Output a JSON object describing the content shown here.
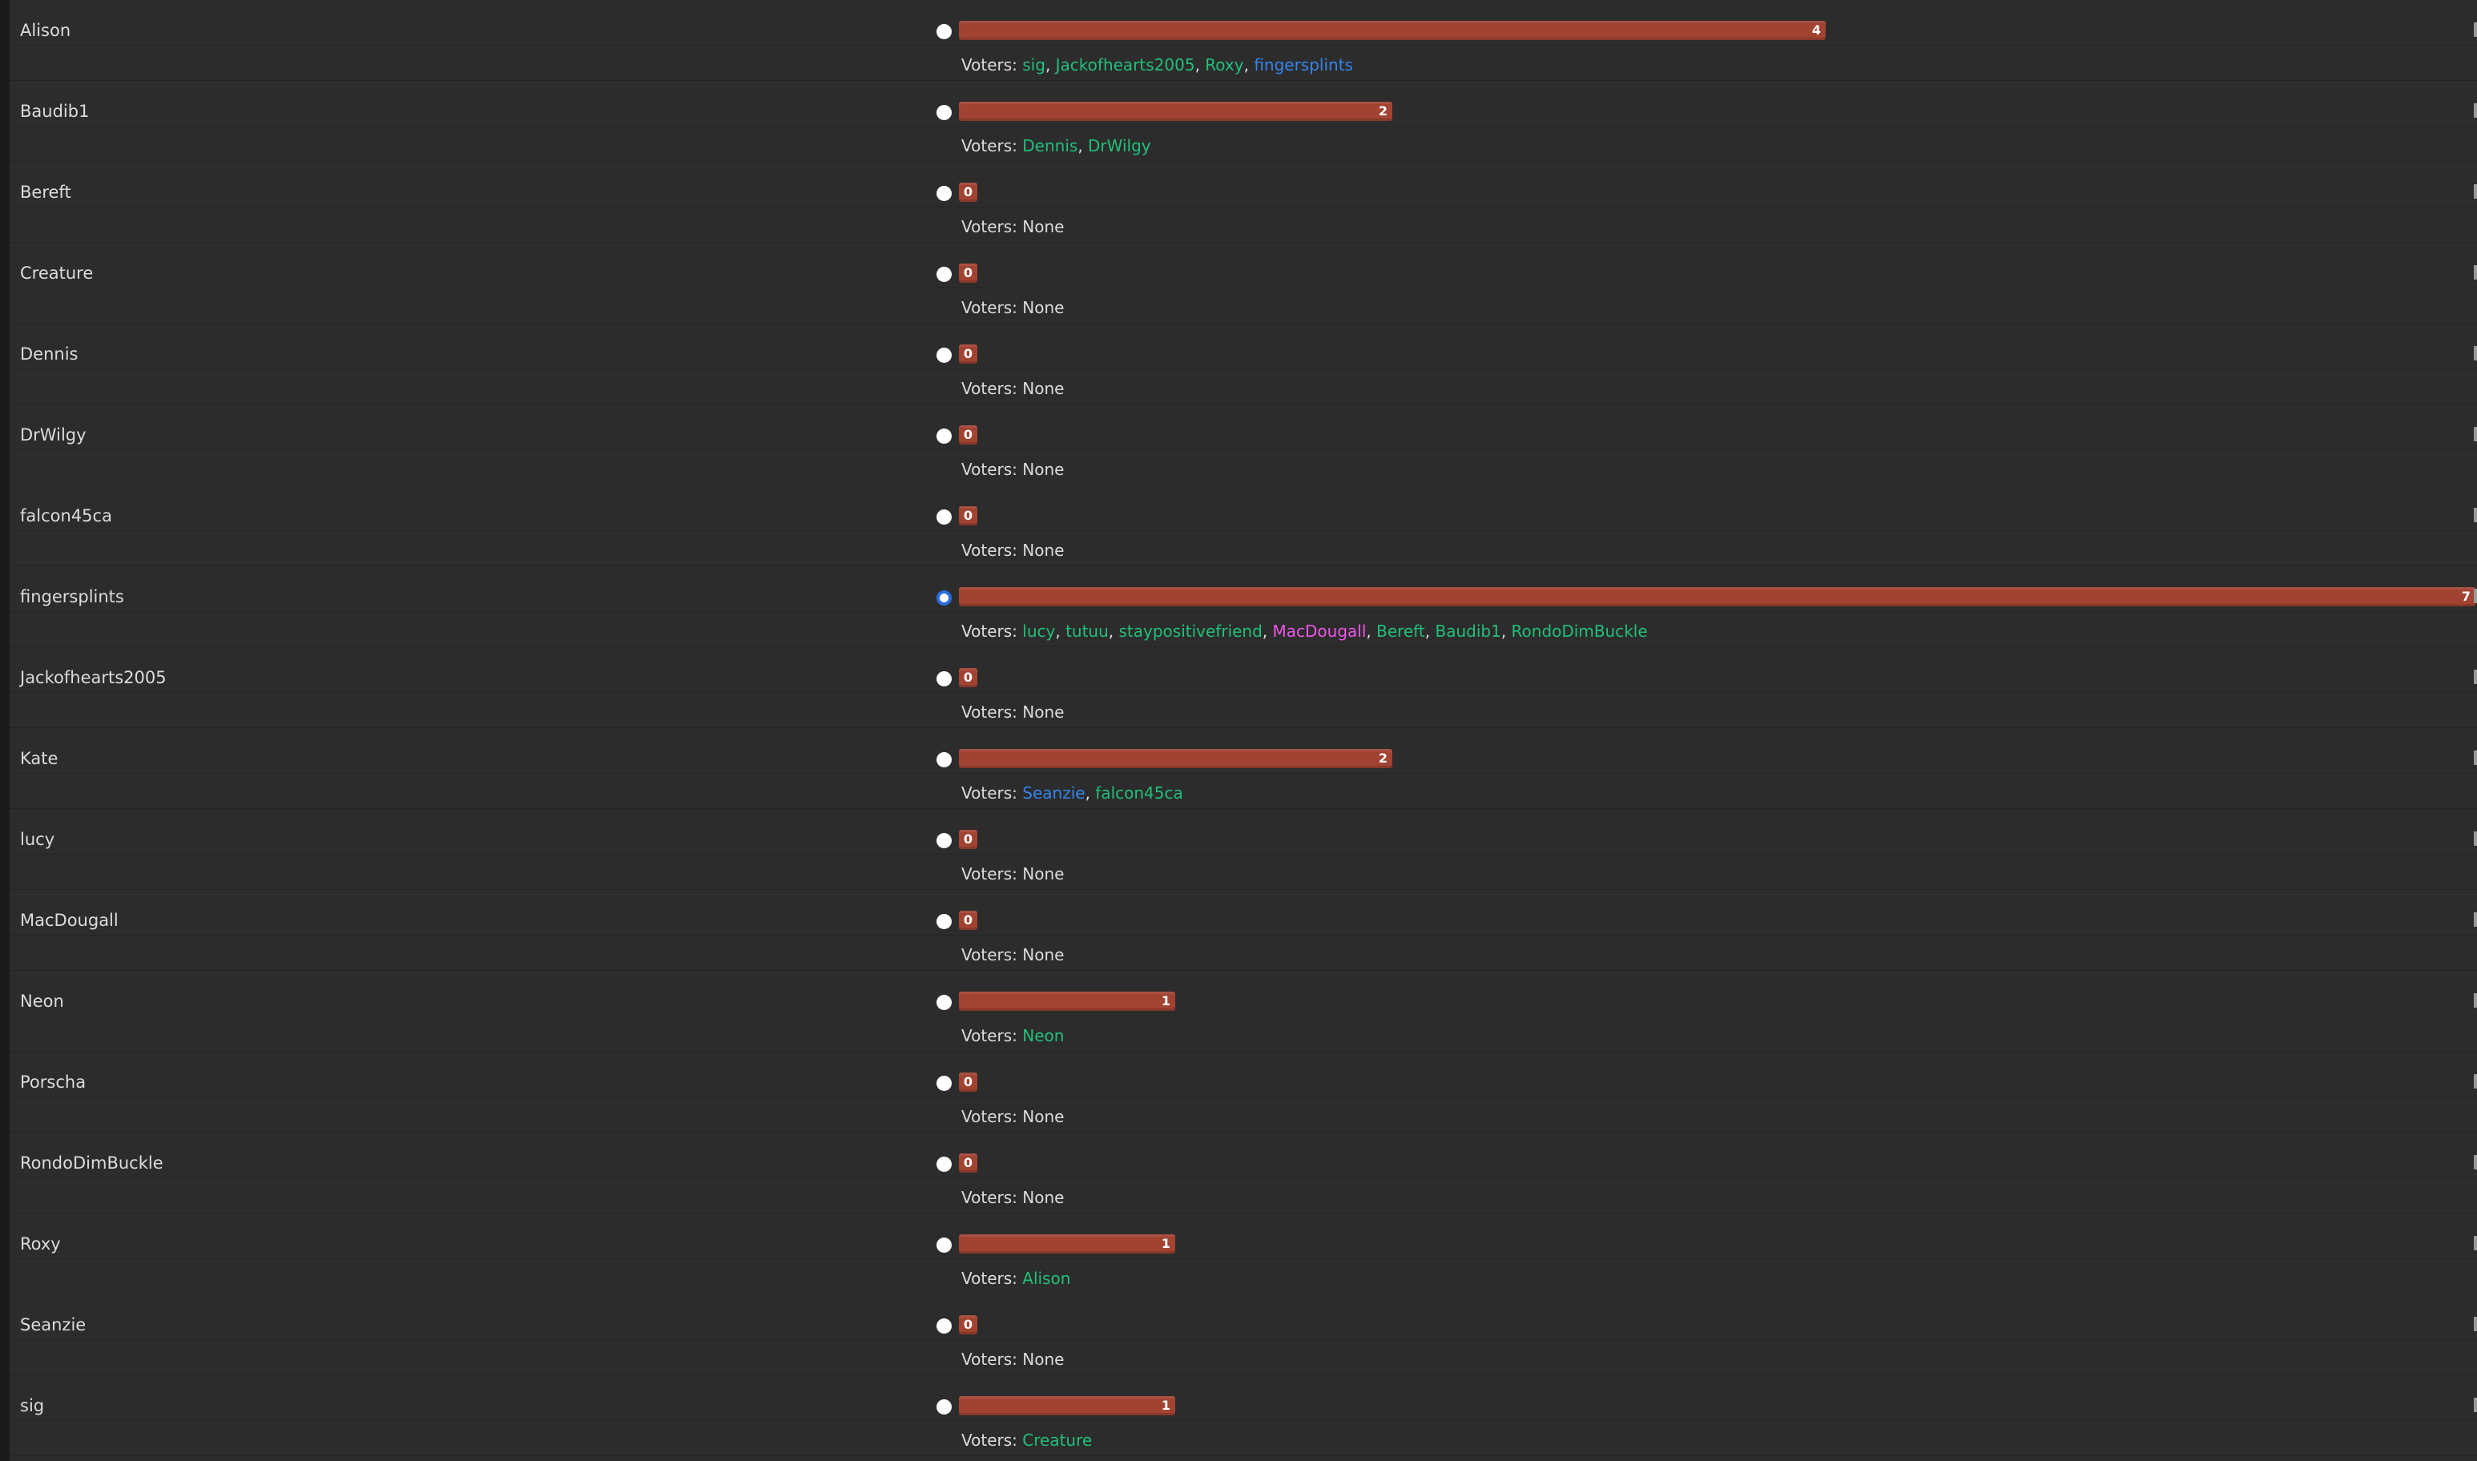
{
  "poll": {
    "voters_prefix": "Voters:",
    "none_text": "None",
    "max_votes": 7,
    "colors": {
      "bar": "#a24332",
      "voter_green": "#21c07a",
      "voter_blue": "#3585ee",
      "voter_pink": "#ee55e9",
      "selected_radio": "#2b6fe0"
    },
    "candidates": [
      {
        "name": "Alison",
        "votes": 4,
        "selected": false,
        "voters": [
          {
            "name": "sig",
            "color": "green"
          },
          {
            "name": "Jackofhearts2005",
            "color": "green"
          },
          {
            "name": "Roxy",
            "color": "green"
          },
          {
            "name": "fingersplints",
            "color": "blue"
          }
        ]
      },
      {
        "name": "Baudib1",
        "votes": 2,
        "selected": false,
        "voters": [
          {
            "name": "Dennis",
            "color": "green"
          },
          {
            "name": "DrWilgy",
            "color": "green"
          }
        ]
      },
      {
        "name": "Bereft",
        "votes": 0,
        "selected": false,
        "voters": []
      },
      {
        "name": "Creature",
        "votes": 0,
        "selected": false,
        "voters": []
      },
      {
        "name": "Dennis",
        "votes": 0,
        "selected": false,
        "voters": []
      },
      {
        "name": "DrWilgy",
        "votes": 0,
        "selected": false,
        "voters": []
      },
      {
        "name": "falcon45ca",
        "votes": 0,
        "selected": false,
        "voters": []
      },
      {
        "name": "fingersplints",
        "votes": 7,
        "selected": true,
        "voters": [
          {
            "name": "lucy",
            "color": "green"
          },
          {
            "name": "tutuu",
            "color": "green"
          },
          {
            "name": "staypositivefriend",
            "color": "green"
          },
          {
            "name": "MacDougall",
            "color": "pink"
          },
          {
            "name": "Bereft",
            "color": "green"
          },
          {
            "name": "Baudib1",
            "color": "green"
          },
          {
            "name": "RondoDimBuckle",
            "color": "green"
          }
        ]
      },
      {
        "name": "Jackofhearts2005",
        "votes": 0,
        "selected": false,
        "voters": []
      },
      {
        "name": "Kate",
        "votes": 2,
        "selected": false,
        "voters": [
          {
            "name": "Seanzie",
            "color": "blue"
          },
          {
            "name": "falcon45ca",
            "color": "green"
          }
        ]
      },
      {
        "name": "lucy",
        "votes": 0,
        "selected": false,
        "voters": []
      },
      {
        "name": "MacDougall",
        "votes": 0,
        "selected": false,
        "voters": []
      },
      {
        "name": "Neon",
        "votes": 1,
        "selected": false,
        "voters": [
          {
            "name": "Neon",
            "color": "green"
          }
        ]
      },
      {
        "name": "Porscha",
        "votes": 0,
        "selected": false,
        "voters": []
      },
      {
        "name": "RondoDimBuckle",
        "votes": 0,
        "selected": false,
        "voters": []
      },
      {
        "name": "Roxy",
        "votes": 1,
        "selected": false,
        "voters": [
          {
            "name": "Alison",
            "color": "green"
          }
        ]
      },
      {
        "name": "Seanzie",
        "votes": 0,
        "selected": false,
        "voters": []
      },
      {
        "name": "sig",
        "votes": 1,
        "selected": false,
        "voters": [
          {
            "name": "Creature",
            "color": "green"
          }
        ]
      }
    ]
  }
}
